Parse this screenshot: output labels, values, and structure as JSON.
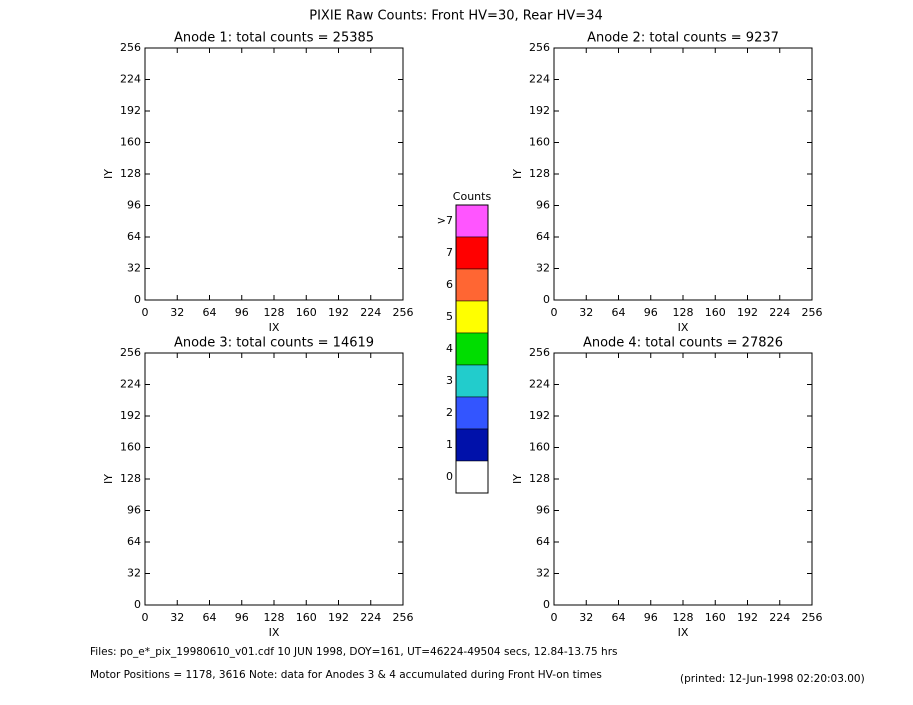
{
  "title": "PIXIE Raw Counts:  Front HV=30, Rear HV=34",
  "chart_data": [
    {
      "type": "heatmap",
      "title": "Anode 1: total counts = 25385",
      "xlabel": "IX",
      "ylabel": "IY",
      "xlim": [
        0,
        256
      ],
      "ylim": [
        0,
        256
      ],
      "xticks": [
        0,
        32,
        64,
        96,
        128,
        160,
        192,
        224,
        256
      ],
      "yticks": [
        0,
        32,
        64,
        96,
        128,
        160,
        192,
        224,
        256
      ]
    },
    {
      "type": "heatmap",
      "title": "Anode 2: total counts = 9237",
      "xlabel": "IX",
      "ylabel": "IY",
      "xlim": [
        0,
        256
      ],
      "ylim": [
        0,
        256
      ],
      "xticks": [
        0,
        32,
        64,
        96,
        128,
        160,
        192,
        224,
        256
      ],
      "yticks": [
        0,
        32,
        64,
        96,
        128,
        160,
        192,
        224,
        256
      ]
    },
    {
      "type": "heatmap",
      "title": "Anode 3: total counts = 14619",
      "xlabel": "IX",
      "ylabel": "IY",
      "xlim": [
        0,
        256
      ],
      "ylim": [
        0,
        256
      ],
      "xticks": [
        0,
        32,
        64,
        96,
        128,
        160,
        192,
        224,
        256
      ],
      "yticks": [
        0,
        32,
        64,
        96,
        128,
        160,
        192,
        224,
        256
      ]
    },
    {
      "type": "heatmap",
      "title": "Anode 4: total counts = 27826",
      "xlabel": "IX",
      "ylabel": "IY",
      "xlim": [
        0,
        256
      ],
      "ylim": [
        0,
        256
      ],
      "xticks": [
        0,
        32,
        64,
        96,
        128,
        160,
        192,
        224,
        256
      ],
      "yticks": [
        0,
        32,
        64,
        96,
        128,
        160,
        192,
        224,
        256
      ]
    }
  ],
  "colorbar": {
    "title": "Counts",
    "labels": [
      ">7",
      "7",
      "6",
      "5",
      "4",
      "3",
      "2",
      "1",
      "0"
    ],
    "colors": [
      "#ff55ff",
      "#ff0000",
      "#ff6633",
      "#ffff00",
      "#00dd00",
      "#22cccc",
      "#3355ff",
      "#0011aa",
      "#ffffff"
    ]
  },
  "footer": {
    "files": "Files: po_e*_pix_19980610_v01.cdf    10 JUN 1998, DOY=161, UT=46224-49504 secs, 12.84-13.75 hrs",
    "motor": "Motor Positions = 1178, 3616   Note: data for Anodes 3 & 4 accumulated during Front HV-on times",
    "printed": "(printed: 12-Jun-1998 02:20:03.00)"
  }
}
